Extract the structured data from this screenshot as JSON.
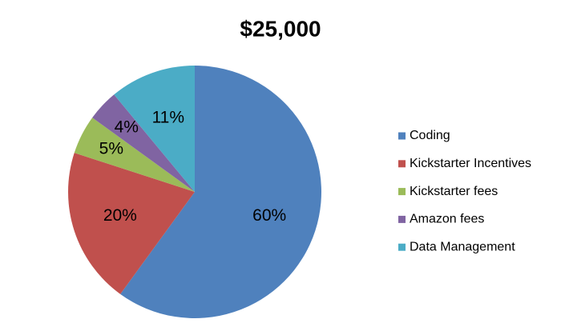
{
  "chart_data": {
    "type": "pie",
    "title": "$25,000",
    "categories": [
      "Coding",
      "Kickstarter Incentives",
      "Kickstarter fees",
      "Amazon fees",
      "Data Management"
    ],
    "values": [
      60,
      20,
      5,
      4,
      11
    ],
    "value_labels": [
      "60%",
      "20%",
      "5%",
      "4%",
      "11%"
    ],
    "colors": [
      "#4f81bd",
      "#c0504d",
      "#9bbb59",
      "#8064a2",
      "#4bacc6"
    ],
    "legend": "right"
  }
}
